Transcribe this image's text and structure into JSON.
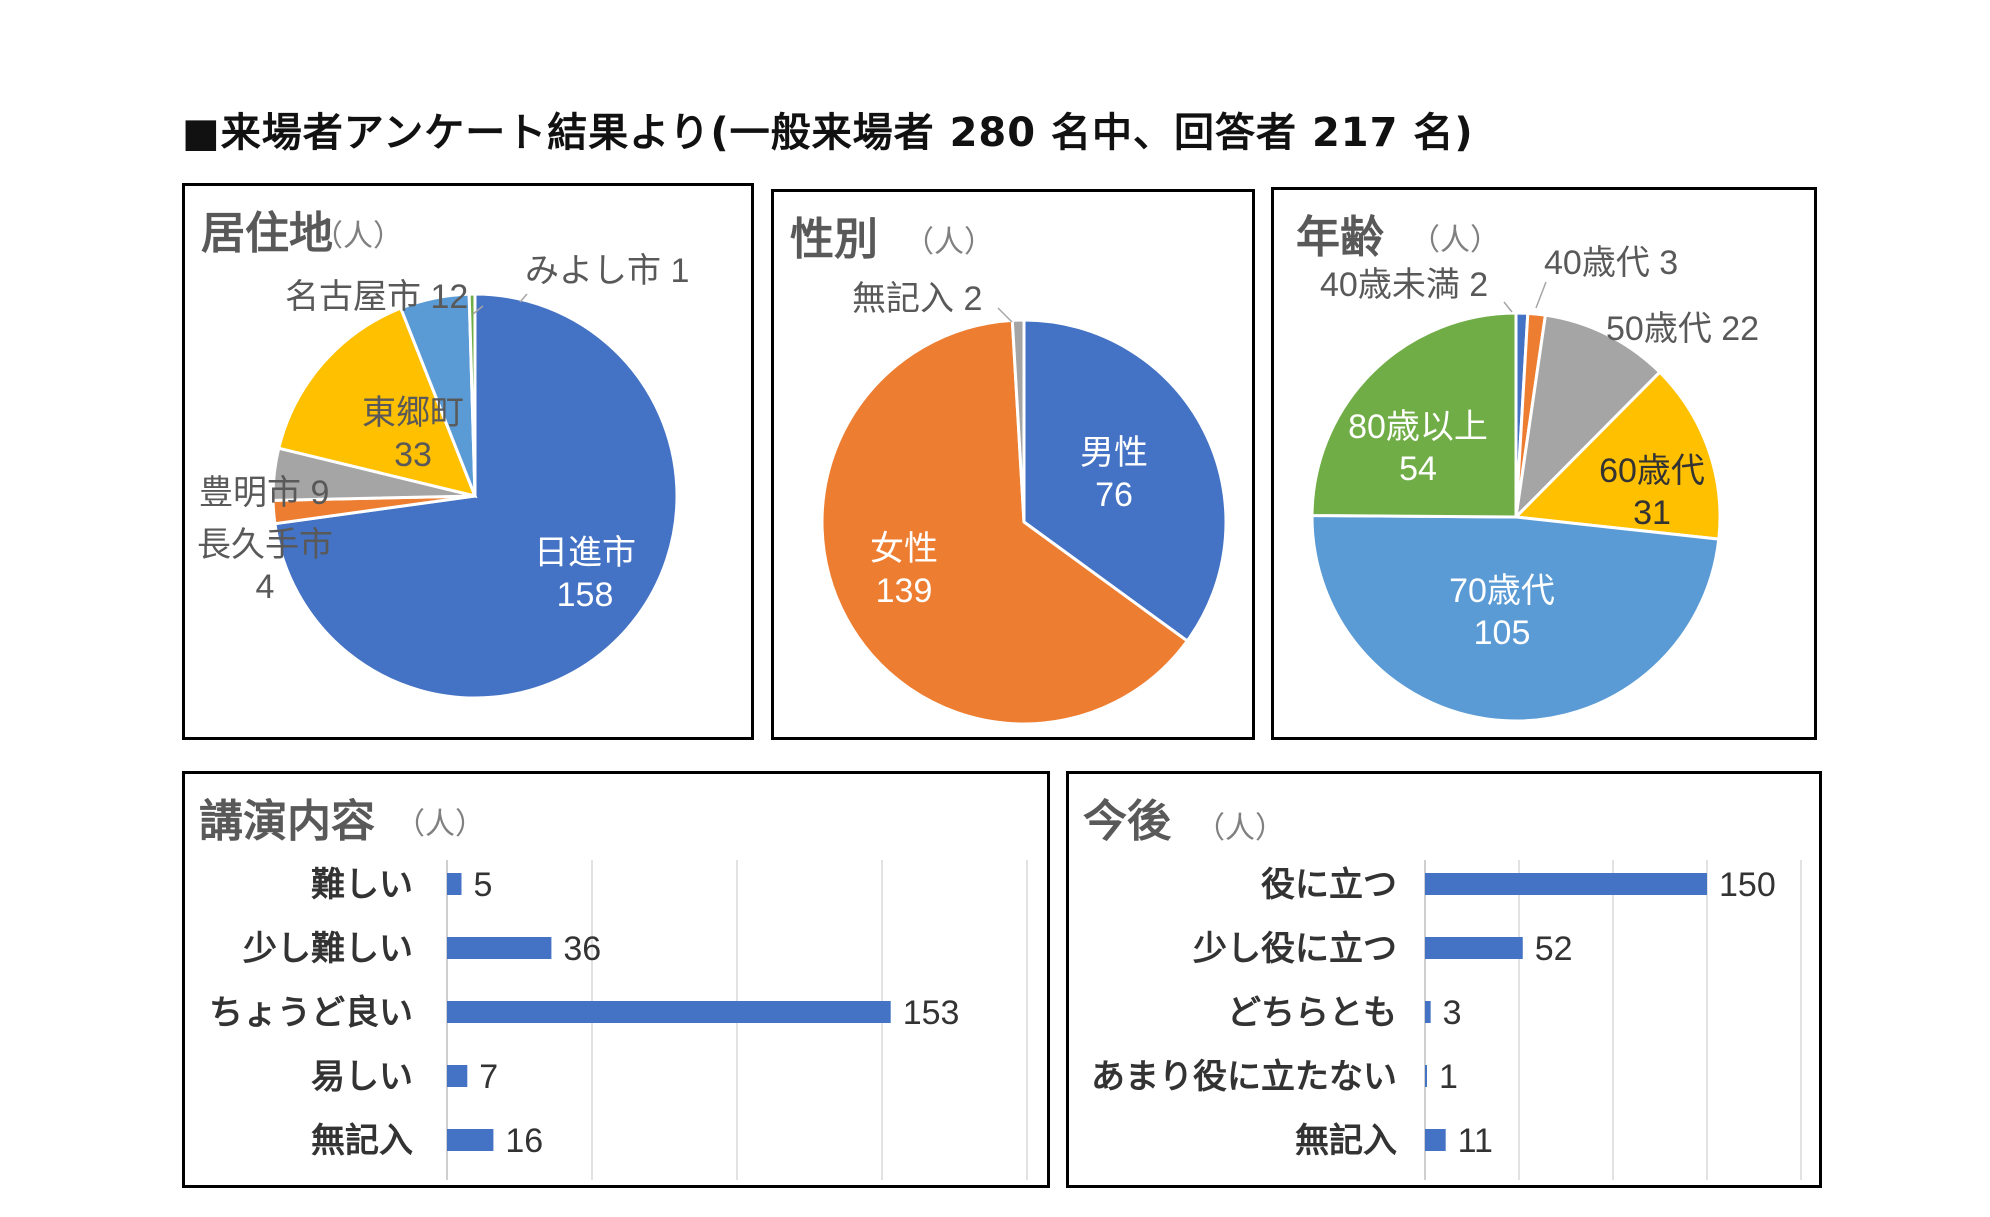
{
  "page": {
    "title": "■来場者アンケート結果より(一般来場者 280 名中、回答者 217 名)"
  },
  "chart_data": [
    {
      "type": "pie",
      "id": "residence",
      "title": "居住地",
      "unit": "（人）",
      "slices": [
        {
          "label": "日進市",
          "value": 158,
          "color": "#4472C4"
        },
        {
          "label": "長久手市",
          "value": 4,
          "color": "#ED7D31"
        },
        {
          "label": "豊明市",
          "value": 9,
          "color": "#A5A5A5"
        },
        {
          "label": "東郷町",
          "value": 33,
          "color": "#FFC000"
        },
        {
          "label": "名古屋市",
          "value": 12,
          "color": "#5B9BD5"
        },
        {
          "label": "みよし市",
          "value": 1,
          "color": "#70AD47"
        }
      ]
    },
    {
      "type": "pie",
      "id": "gender",
      "title": "性別",
      "unit": "（人）",
      "slices": [
        {
          "label": "男性",
          "value": 76,
          "color": "#4472C4"
        },
        {
          "label": "女性",
          "value": 139,
          "color": "#ED7D31"
        },
        {
          "label": "無記入",
          "value": 2,
          "color": "#A5A5A5"
        }
      ]
    },
    {
      "type": "pie",
      "id": "age",
      "title": "年齢",
      "unit": "（人）",
      "slices": [
        {
          "label": "40歳未満",
          "value": 2,
          "color": "#4472C4"
        },
        {
          "label": "40歳代",
          "value": 3,
          "color": "#ED7D31"
        },
        {
          "label": "50歳代",
          "value": 22,
          "color": "#A5A5A5"
        },
        {
          "label": "60歳代",
          "value": 31,
          "color": "#FFC000"
        },
        {
          "label": "70歳代",
          "value": 105,
          "color": "#5B9BD5"
        },
        {
          "label": "80歳以上",
          "value": 54,
          "color": "#70AD47"
        }
      ]
    },
    {
      "type": "bar",
      "id": "lecture",
      "orientation": "horizontal",
      "title": "講演内容",
      "unit": "（人）",
      "categories": [
        "難しい",
        "少し難しい",
        "ちょうど良い",
        "易しい",
        "無記入"
      ],
      "values": [
        5,
        36,
        153,
        7,
        16
      ],
      "xlim": [
        0,
        200
      ],
      "grid": true,
      "color": "#4472C4"
    },
    {
      "type": "bar",
      "id": "future",
      "orientation": "horizontal",
      "title": "今後",
      "unit": "（人）",
      "categories": [
        "役に立つ",
        "少し役に立つ",
        "どちらとも",
        "あまり役に立たない",
        "無記入"
      ],
      "values": [
        150,
        52,
        3,
        1,
        11
      ],
      "xlim": [
        0,
        200
      ],
      "grid": true,
      "color": "#4472C4"
    }
  ]
}
